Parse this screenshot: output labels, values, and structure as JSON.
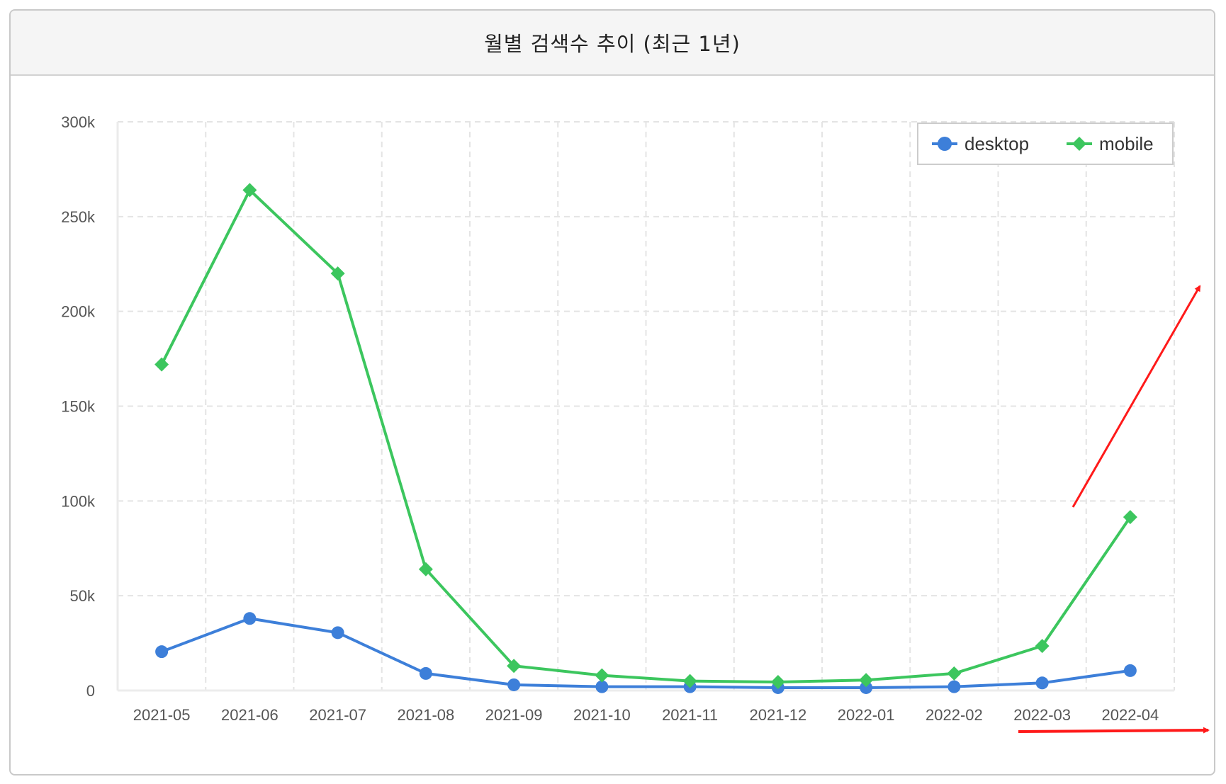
{
  "header": {
    "title": "월별 검색수 추이 (최근 1년)"
  },
  "chart_data": {
    "type": "line",
    "title": "월별 검색수 추이 (최근 1년)",
    "xlabel": "",
    "ylabel": "",
    "categories": [
      "2021-05",
      "2021-06",
      "2021-07",
      "2021-08",
      "2021-09",
      "2021-10",
      "2021-11",
      "2021-12",
      "2022-01",
      "2022-02",
      "2022-03",
      "2022-04"
    ],
    "ylim": [
      0,
      300000
    ],
    "yticks": [
      {
        "value": 0,
        "label": "0"
      },
      {
        "value": 50000,
        "label": "50k"
      },
      {
        "value": 100000,
        "label": "100k"
      },
      {
        "value": 150000,
        "label": "150k"
      },
      {
        "value": 200000,
        "label": "200k"
      },
      {
        "value": 250000,
        "label": "250k"
      },
      {
        "value": 300000,
        "label": "300k"
      }
    ],
    "grid": true,
    "legend_position": "top-right",
    "series": [
      {
        "name": "desktop",
        "color": "#3d7fd9",
        "marker": "circle",
        "values": [
          20500,
          38000,
          30500,
          9000,
          3000,
          2000,
          2000,
          1500,
          1500,
          2000,
          4000,
          10500
        ]
      },
      {
        "name": "mobile",
        "color": "#3cc65e",
        "marker": "diamond",
        "values": [
          172000,
          264000,
          220000,
          64000,
          13000,
          8000,
          5000,
          4500,
          5500,
          9000,
          23500,
          91500
        ]
      }
    ],
    "annotations": [
      {
        "type": "arrow",
        "color": "#ff1a1a",
        "direction": "up-right"
      },
      {
        "type": "arrow",
        "color": "#ff1a1a",
        "direction": "right"
      }
    ]
  }
}
